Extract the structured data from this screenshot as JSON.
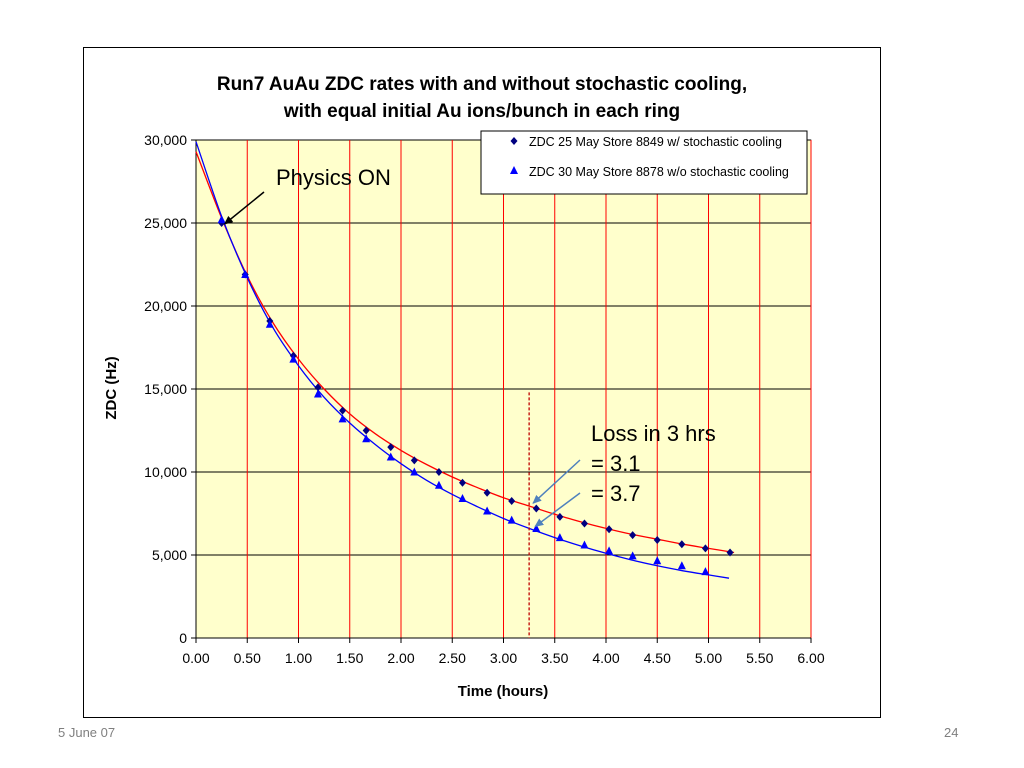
{
  "slide": {
    "date": "5 June 07",
    "page_number": "24"
  },
  "chart_data": {
    "type": "scatter",
    "title": [
      "Run7 AuAu ZDC rates with and without stochastic cooling,",
      "with equal initial Au ions/bunch in each ring"
    ],
    "xlabel": "Time (hours)",
    "ylabel": "ZDC (Hz)",
    "xlim": [
      0,
      6
    ],
    "ylim": [
      0,
      30000
    ],
    "x_ticks": [
      0,
      0.5,
      1,
      1.5,
      2,
      2.5,
      3,
      3.5,
      4,
      4.5,
      5,
      5.5,
      6
    ],
    "x_tick_labels": [
      "0.00",
      "0.50",
      "1.00",
      "1.50",
      "2.00",
      "2.50",
      "3.00",
      "3.50",
      "4.00",
      "4.50",
      "5.00",
      "5.50",
      "6.00"
    ],
    "y_ticks": [
      0,
      5000,
      10000,
      15000,
      20000,
      25000,
      30000
    ],
    "y_tick_labels": [
      "0",
      "5,000",
      "10,000",
      "15,000",
      "20,000",
      "25,000",
      "30,000"
    ],
    "plot_background": "#ffffcc",
    "grid": {
      "vertical": true,
      "vertical_color": "#ff0000",
      "horizontal": true,
      "horizontal_color": "#000000"
    },
    "legend_position": "top-right",
    "series": [
      {
        "name": "ZDC 25 May Store 8849 w/ stochastic cooling",
        "marker": "diamond",
        "color": "#000080",
        "fit_color": "#ff0000",
        "x": [
          0.25,
          0.48,
          0.72,
          0.95,
          1.19,
          1.43,
          1.66,
          1.9,
          2.13,
          2.37,
          2.6,
          2.84,
          3.08,
          3.32,
          3.55,
          3.79,
          4.03,
          4.26,
          4.5,
          4.74,
          4.97,
          5.21
        ],
        "y": [
          25000,
          21900,
          19100,
          17000,
          15100,
          13700,
          12500,
          11500,
          10700,
          10000,
          9350,
          8750,
          8250,
          7800,
          7300,
          6900,
          6550,
          6200,
          5900,
          5650,
          5400,
          5150
        ],
        "fit_x": [
          0,
          0.25,
          0.5,
          0.75,
          1,
          1.25,
          1.5,
          1.75,
          2,
          2.25,
          2.5,
          2.75,
          3,
          3.25,
          3.5,
          3.75,
          4,
          4.25,
          4.5,
          4.75,
          5,
          5.25
        ],
        "fit_y": [
          29300,
          25300,
          21800,
          19000,
          16800,
          15000,
          13500,
          12300,
          11300,
          10450,
          9700,
          9050,
          8450,
          7950,
          7450,
          7000,
          6600,
          6250,
          5950,
          5650,
          5400,
          5150
        ]
      },
      {
        "name": "ZDC 30 May Store 8878 w/o stochastic cooling",
        "marker": "triangle",
        "color": "#0000ff",
        "fit_color": "#0000ff",
        "x": [
          0.25,
          0.48,
          0.72,
          0.95,
          1.19,
          1.43,
          1.66,
          1.9,
          2.13,
          2.37,
          2.6,
          2.84,
          3.08,
          3.32,
          3.55,
          3.79,
          4.03,
          4.26,
          4.5,
          4.74,
          4.97
        ],
        "y": [
          25200,
          21900,
          18900,
          16800,
          14700,
          13200,
          12000,
          10900,
          10000,
          9200,
          8400,
          7650,
          7100,
          6600,
          6050,
          5600,
          5250,
          4950,
          4650,
          4350,
          4000
        ],
        "fit_x": [
          0,
          0.25,
          0.5,
          0.75,
          1,
          1.25,
          1.5,
          1.75,
          2,
          2.25,
          2.5,
          2.75,
          3,
          3.25,
          3.5,
          3.75,
          4,
          4.25,
          4.5,
          4.75,
          5,
          5.2
        ],
        "fit_y": [
          29900,
          25400,
          21700,
          18700,
          16400,
          14500,
          12950,
          11650,
          10500,
          9500,
          8650,
          7900,
          7200,
          6600,
          6050,
          5550,
          5100,
          4700,
          4350,
          4050,
          3800,
          3600
        ]
      }
    ],
    "annotations": {
      "physics_on": {
        "text": "Physics ON",
        "arrow_to": [
          0.25,
          25000
        ]
      },
      "loss": {
        "lines": [
          "Loss in 3 hrs",
          "= 3.1",
          "= 3.7"
        ],
        "arrow_targets": [
          [
            3.25,
            8000
          ],
          [
            3.27,
            6600
          ]
        ]
      },
      "marker_line": {
        "x": 3.25,
        "y_top": 14800,
        "y_bottom": 0,
        "color": "#c00000"
      }
    }
  }
}
